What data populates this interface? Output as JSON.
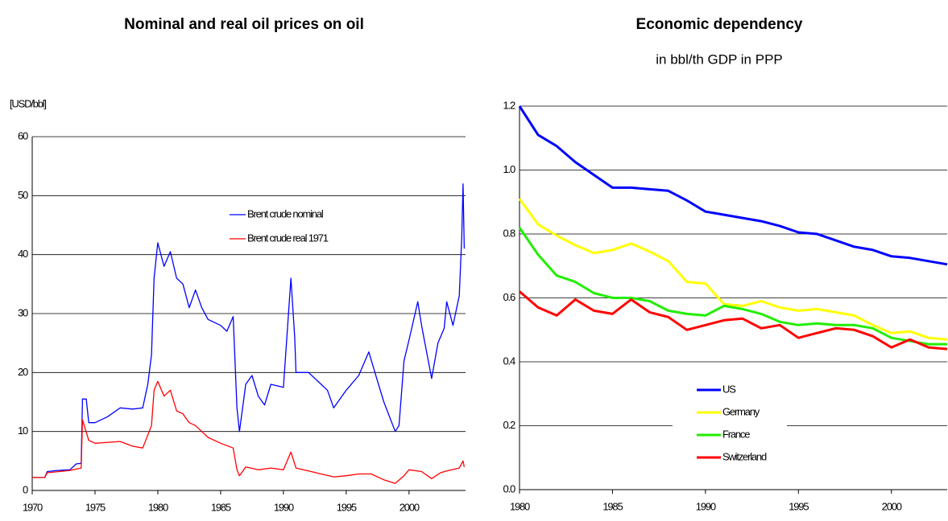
{
  "chart_data": [
    {
      "type": "line",
      "title": "Nominal and real oil prices on oil",
      "y_label": "[USD/bbl]",
      "xlim": [
        1970,
        2004.5
      ],
      "xticks": [
        1970,
        1975,
        1980,
        1985,
        1990,
        1995,
        2000
      ],
      "ylim": [
        0,
        60
      ],
      "yticks": [
        0,
        10,
        20,
        30,
        40,
        50,
        60
      ],
      "grid": true,
      "legend": "center",
      "series": [
        {
          "name": "Brent crude nominal",
          "color": "#0000ff",
          "x": [
            1970,
            1971,
            1971.2,
            1972,
            1973,
            1973.5,
            1973.9,
            1974,
            1974.3,
            1974.5,
            1975,
            1976,
            1977,
            1978,
            1978.8,
            1979.2,
            1979.5,
            1979.7,
            1980,
            1980.5,
            1981,
            1981.5,
            1982,
            1982.5,
            1983,
            1983.5,
            1984,
            1985,
            1985.5,
            1986,
            1986.3,
            1986.5,
            1987,
            1987.5,
            1988,
            1988.5,
            1989,
            1990,
            1990.6,
            1990.9,
            1991,
            1992,
            1993,
            1993.5,
            1994,
            1995,
            1996,
            1996.8,
            1997.5,
            1998,
            1998.9,
            1999.2,
            1999.6,
            2000,
            2000.7,
            2001,
            2001.8,
            2002.3,
            2002.8,
            2003,
            2003.5,
            2004,
            2004.2,
            2004.3,
            2004.4
          ],
          "values": [
            2.2,
            2.2,
            3.2,
            3.4,
            3.5,
            4.5,
            4.6,
            15.5,
            15.5,
            11.5,
            11.5,
            12.5,
            14,
            13.8,
            14,
            18,
            23,
            36,
            42,
            38,
            40.5,
            36,
            35,
            31,
            34,
            31,
            29,
            28,
            27,
            29.5,
            14,
            10,
            18,
            19.5,
            16,
            14.5,
            18,
            17.5,
            36,
            26,
            20,
            20,
            18,
            17,
            14,
            17,
            19.5,
            23.5,
            18.5,
            15,
            10,
            11,
            22,
            25.5,
            32,
            28,
            19,
            25,
            27.5,
            32,
            28,
            33,
            43,
            52,
            41
          ]
        },
        {
          "name": "Brent crude real 1971",
          "color": "#ff0000",
          "x": [
            1970,
            1971,
            1971.2,
            1973,
            1973.9,
            1974,
            1974.5,
            1975,
            1977,
            1978,
            1978.8,
            1979.5,
            1979.7,
            1980,
            1980.5,
            1981,
            1981.5,
            1982,
            1982.5,
            1983,
            1984,
            1985,
            1986,
            1986.3,
            1986.5,
            1987,
            1988,
            1989,
            1990,
            1990.6,
            1991,
            1992,
            1993,
            1994,
            1995,
            1996,
            1997,
            1998,
            1998.9,
            1999.6,
            2000,
            2001,
            2001.8,
            2002.5,
            2003,
            2004,
            2004.3,
            2004.4
          ],
          "values": [
            2.2,
            2.2,
            3,
            3.4,
            3.8,
            12,
            8.5,
            8,
            8.3,
            7.5,
            7.2,
            11,
            17,
            18.5,
            16,
            17,
            13.5,
            13,
            11.5,
            11,
            9,
            8,
            7.2,
            3.5,
            2.5,
            4,
            3.5,
            3.8,
            3.5,
            6.5,
            3.8,
            3.3,
            2.8,
            2.3,
            2.5,
            2.8,
            2.8,
            1.8,
            1.2,
            2.5,
            3.5,
            3.2,
            2,
            3,
            3.3,
            3.8,
            5,
            4
          ]
        }
      ]
    },
    {
      "type": "line",
      "title": "Economic dependency",
      "subtitle": "in bbl/th GDP in PPP",
      "xlim": [
        1980,
        2003
      ],
      "xticks": [
        1980,
        1985,
        1990,
        1995,
        2000
      ],
      "ylim": [
        0,
        1.2
      ],
      "yticks": [
        {
          "value": 0,
          "label": "0.0"
        },
        0.2,
        0.4,
        0.6,
        0.8,
        {
          "value": 1,
          "label": "1.0"
        },
        1.2
      ],
      "grid": true,
      "legend": "lower center",
      "x": [
        1980,
        1981,
        1982,
        1983,
        1984,
        1985,
        1986,
        1987,
        1988,
        1989,
        1990,
        1991,
        1992,
        1993,
        1994,
        1995,
        1996,
        1997,
        1998,
        1999,
        2000,
        2001,
        2002,
        2003
      ],
      "series": [
        {
          "name": "US",
          "color": "#0000ff",
          "values": [
            1.2,
            1.11,
            1.075,
            1.025,
            0.985,
            0.945,
            0.945,
            0.94,
            0.935,
            0.905,
            0.87,
            0.86,
            0.85,
            0.84,
            0.825,
            0.805,
            0.8,
            0.78,
            0.76,
            0.75,
            0.73,
            0.725,
            0.715,
            0.705
          ]
        },
        {
          "name": "Germany",
          "color": "#ffff00",
          "values": [
            0.91,
            0.83,
            0.795,
            0.765,
            0.74,
            0.75,
            0.77,
            0.745,
            0.715,
            0.65,
            0.645,
            0.58,
            0.575,
            0.59,
            0.57,
            0.56,
            0.565,
            0.555,
            0.545,
            0.515,
            0.49,
            0.495,
            0.475,
            0.47
          ]
        },
        {
          "name": "France",
          "color": "#22ee00",
          "values": [
            0.82,
            0.735,
            0.67,
            0.65,
            0.615,
            0.6,
            0.6,
            0.59,
            0.56,
            0.55,
            0.545,
            0.575,
            0.565,
            0.55,
            0.525,
            0.515,
            0.52,
            0.515,
            0.515,
            0.505,
            0.475,
            0.465,
            0.455,
            0.455
          ]
        },
        {
          "name": "Switzerland",
          "color": "#ff0000",
          "values": [
            0.62,
            0.57,
            0.545,
            0.595,
            0.56,
            0.55,
            0.595,
            0.555,
            0.54,
            0.5,
            0.515,
            0.53,
            0.535,
            0.505,
            0.515,
            0.475,
            0.49,
            0.505,
            0.5,
            0.48,
            0.445,
            0.47,
            0.445,
            0.44
          ]
        }
      ]
    }
  ]
}
